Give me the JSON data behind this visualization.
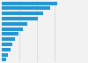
{
  "values": [
    95,
    82,
    70,
    62,
    44,
    36,
    28,
    22,
    18,
    15,
    11,
    8
  ],
  "bar_color": "#2196d3",
  "background_color": "#f2f2f2",
  "grid_color": "#ffffff",
  "bar_height": 0.72,
  "xlim": [
    0,
    120
  ]
}
